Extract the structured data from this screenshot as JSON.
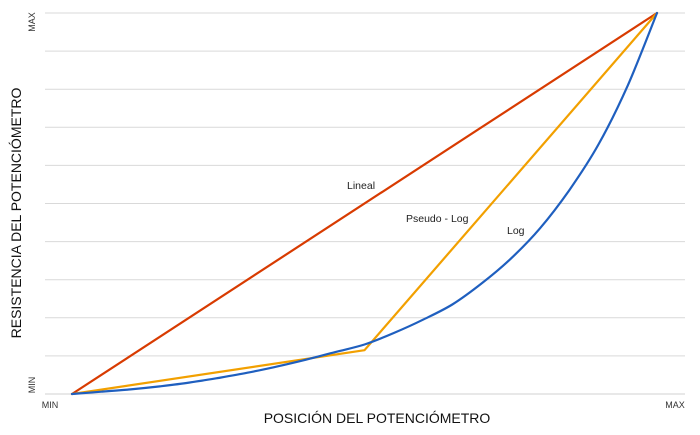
{
  "chart_data": {
    "type": "line",
    "title": "",
    "xlabel": "POSICIÓN DEL POTENCIÓMETRO",
    "ylabel": "RESISTENCIA DEL POTENCIÓMETRO",
    "xlim": [
      0,
      1
    ],
    "ylim": [
      0,
      1
    ],
    "x_ticks": [
      "MIN",
      "MAX"
    ],
    "y_ticks": [
      "MIN",
      "MAX"
    ],
    "grid": true,
    "gridlines_y": [
      0.1,
      0.2,
      0.3,
      0.4,
      0.5,
      0.6,
      0.7,
      0.8,
      0.9,
      1.0
    ],
    "series": [
      {
        "name": "Lineal",
        "color": "#d83b01",
        "x": [
          0,
          1
        ],
        "y": [
          0,
          1
        ]
      },
      {
        "name": "Pseudo - Log",
        "color": "#f2a000",
        "x": [
          0,
          0.5,
          1
        ],
        "y": [
          0,
          0.115,
          1
        ]
      },
      {
        "name": "Log",
        "color": "#1f5fbf",
        "x": [
          0,
          0.05,
          0.1,
          0.15,
          0.2,
          0.25,
          0.3,
          0.35,
          0.4,
          0.45,
          0.5,
          0.55,
          0.6,
          0.65,
          0.7,
          0.75,
          0.8,
          0.85,
          0.9,
          0.95,
          1.0
        ],
        "y": [
          0,
          0.006,
          0.012,
          0.02,
          0.03,
          0.042,
          0.056,
          0.072,
          0.09,
          0.11,
          0.13,
          0.16,
          0.195,
          0.235,
          0.29,
          0.355,
          0.435,
          0.535,
          0.655,
          0.81,
          1.0
        ]
      }
    ]
  }
}
